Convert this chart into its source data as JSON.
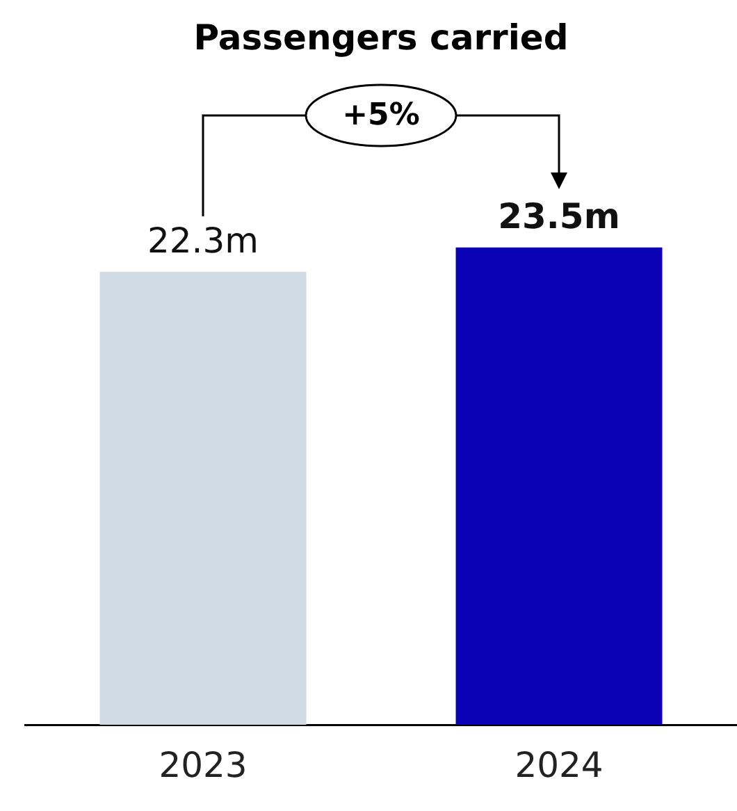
{
  "chart_data": {
    "type": "bar",
    "title": "Passengers carried",
    "categories": [
      "2023",
      "2024"
    ],
    "values": [
      22.3,
      23.5
    ],
    "colors": [
      "#d0dae3",
      "#0a00b4"
    ],
    "value_labels": [
      "22.3m",
      "23.5m"
    ],
    "annotations": [
      "+5%"
    ]
  }
}
